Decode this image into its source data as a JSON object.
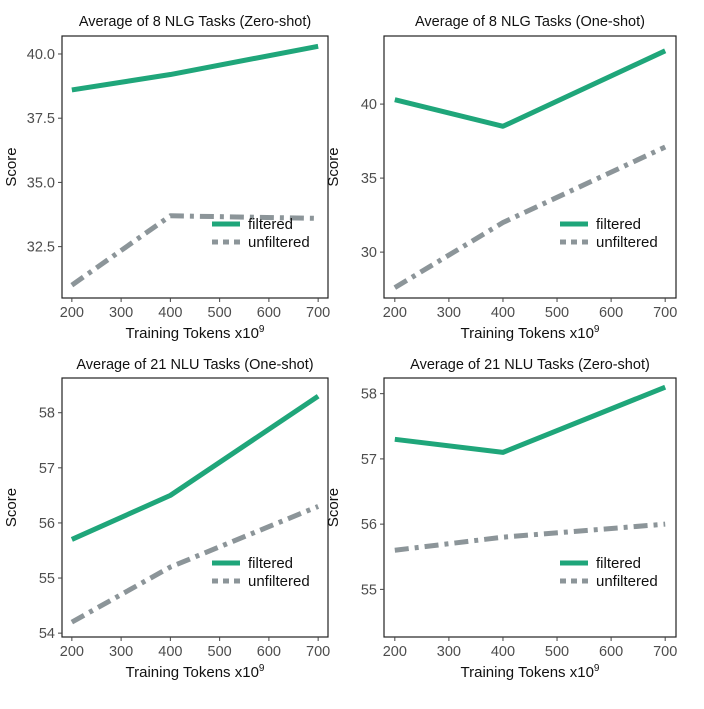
{
  "figure": {
    "colors": {
      "filtered": "#1fa67a",
      "unfiltered": "#8c9599"
    },
    "legend_placement": "lower-right"
  },
  "chart_data": [
    {
      "type": "line",
      "title": "Average of 8 NLG Tasks (Zero-shot)",
      "xlabel": "Training Tokens x10",
      "xlabel_sup": "9",
      "ylabel": "Score",
      "x": [
        200,
        400,
        700
      ],
      "xticks": [
        200,
        300,
        400,
        500,
        600,
        700
      ],
      "xticklabels": [
        "200",
        "300",
        "400",
        "500",
        "600",
        "700"
      ],
      "yticks": [
        32.5,
        35.0,
        37.5,
        40.0
      ],
      "yticklabels": [
        "32.5",
        "35.0",
        "37.5",
        "40.0"
      ],
      "xlim": [
        180,
        720
      ],
      "ylim": [
        30.5,
        40.7
      ],
      "grid": false,
      "legend": "lower-right",
      "series": [
        {
          "name": "filtered",
          "values": [
            38.6,
            39.2,
            40.3
          ],
          "style": "solid"
        },
        {
          "name": "unfiltered",
          "values": [
            31.0,
            33.7,
            33.6
          ],
          "style": "dashdot"
        }
      ]
    },
    {
      "type": "line",
      "title": "Average of 8 NLG Tasks (One-shot)",
      "xlabel": "Training Tokens x10",
      "xlabel_sup": "9",
      "ylabel": "Score",
      "x": [
        200,
        400,
        700
      ],
      "xticks": [
        200,
        300,
        400,
        500,
        600,
        700
      ],
      "xticklabels": [
        "200",
        "300",
        "400",
        "500",
        "600",
        "700"
      ],
      "yticks": [
        30,
        35,
        40
      ],
      "yticklabels": [
        "30",
        "35",
        "40"
      ],
      "xlim": [
        180,
        720
      ],
      "ylim": [
        26.9,
        44.6
      ],
      "grid": false,
      "legend": "lower-right",
      "series": [
        {
          "name": "filtered",
          "values": [
            40.3,
            38.5,
            43.6
          ],
          "style": "solid"
        },
        {
          "name": "unfiltered",
          "values": [
            27.6,
            32.0,
            37.1
          ],
          "style": "dashdot"
        }
      ]
    },
    {
      "type": "line",
      "title": "Average of 21 NLU Tasks (One-shot)",
      "xlabel": "Training Tokens x10",
      "xlabel_sup": "9",
      "ylabel": "Score",
      "x": [
        200,
        400,
        700
      ],
      "xticks": [
        200,
        300,
        400,
        500,
        600,
        700
      ],
      "xticklabels": [
        "200",
        "300",
        "400",
        "500",
        "600",
        "700"
      ],
      "yticks": [
        54,
        55,
        56,
        57,
        58
      ],
      "yticklabels": [
        "54",
        "55",
        "56",
        "57",
        "58"
      ],
      "xlim": [
        180,
        720
      ],
      "ylim": [
        53.93,
        58.63
      ],
      "grid": false,
      "legend": "lower-right",
      "series": [
        {
          "name": "filtered",
          "values": [
            55.7,
            56.5,
            58.3
          ],
          "style": "solid"
        },
        {
          "name": "unfiltered",
          "values": [
            54.2,
            55.2,
            56.3
          ],
          "style": "dashdot"
        }
      ]
    },
    {
      "type": "line",
      "title": "Average of 21 NLU Tasks (Zero-shot)",
      "xlabel": "Training Tokens x10",
      "xlabel_sup": "9",
      "ylabel": "Score",
      "x": [
        200,
        400,
        700
      ],
      "xticks": [
        200,
        300,
        400,
        500,
        600,
        700
      ],
      "xticklabels": [
        "200",
        "300",
        "400",
        "500",
        "600",
        "700"
      ],
      "yticks": [
        55,
        56,
        57,
        58
      ],
      "yticklabels": [
        "55",
        "56",
        "57",
        "58"
      ],
      "xlim": [
        180,
        720
      ],
      "ylim": [
        54.27,
        58.24
      ],
      "grid": false,
      "legend": "lower-right",
      "series": [
        {
          "name": "filtered",
          "values": [
            57.3,
            57.1,
            58.1
          ],
          "style": "solid"
        },
        {
          "name": "unfiltered",
          "values": [
            55.6,
            55.8,
            56.0
          ],
          "style": "dashdot"
        }
      ]
    }
  ]
}
